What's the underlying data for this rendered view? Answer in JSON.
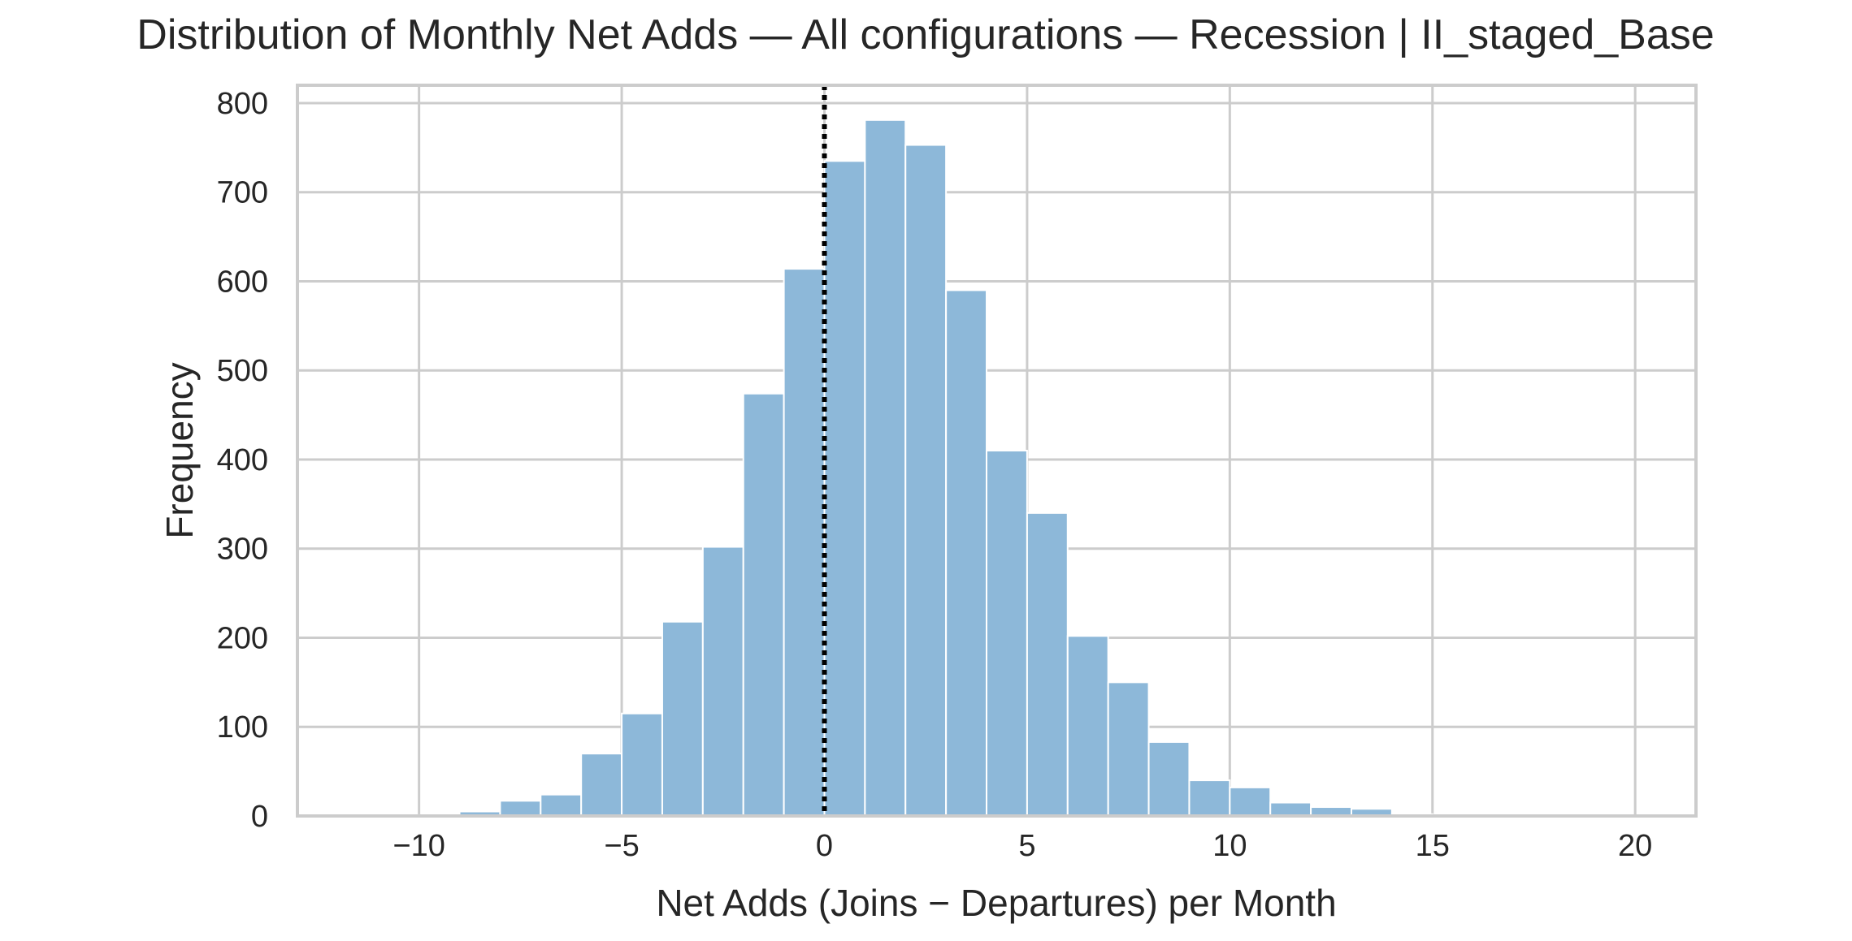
{
  "chart_data": {
    "type": "bar",
    "title": "Distribution of Monthly Net Adds — All configurations — Recession | II_staged_Base",
    "xlabel": "Net Adds (Joins − Departures) per Month",
    "ylabel": "Frequency",
    "xlim": [
      -13,
      21.5
    ],
    "ylim": [
      0,
      820
    ],
    "x_ticks": [
      -10,
      -5,
      0,
      5,
      10,
      15,
      20
    ],
    "x_tick_labels": [
      "−10",
      "−5",
      "0",
      "5",
      "10",
      "15",
      "20"
    ],
    "y_ticks": [
      0,
      100,
      200,
      300,
      400,
      500,
      600,
      700,
      800
    ],
    "y_tick_labels": [
      "0",
      "100",
      "200",
      "300",
      "400",
      "500",
      "600",
      "700",
      "800"
    ],
    "grid": true,
    "bar_color": "#8db8d9",
    "bar_edge_color": "#ffffff",
    "reference_line": {
      "x": 0,
      "style": "dotted",
      "color": "#000000"
    },
    "bin_width": 1,
    "bins": [
      {
        "x0": -12,
        "x1": -11,
        "count": 0
      },
      {
        "x0": -11,
        "x1": -10,
        "count": 0
      },
      {
        "x0": -10,
        "x1": -9,
        "count": 1
      },
      {
        "x0": -9,
        "x1": -8,
        "count": 5
      },
      {
        "x0": -8,
        "x1": -7,
        "count": 17
      },
      {
        "x0": -7,
        "x1": -6,
        "count": 24
      },
      {
        "x0": -6,
        "x1": -5,
        "count": 70
      },
      {
        "x0": -5,
        "x1": -4,
        "count": 115
      },
      {
        "x0": -4,
        "x1": -3,
        "count": 218
      },
      {
        "x0": -3,
        "x1": -2,
        "count": 302
      },
      {
        "x0": -2,
        "x1": -1,
        "count": 474
      },
      {
        "x0": -1,
        "x1": 0,
        "count": 614
      },
      {
        "x0": 0,
        "x1": 1,
        "count": 735
      },
      {
        "x0": 1,
        "x1": 2,
        "count": 781
      },
      {
        "x0": 2,
        "x1": 3,
        "count": 753
      },
      {
        "x0": 3,
        "x1": 4,
        "count": 590
      },
      {
        "x0": 4,
        "x1": 5,
        "count": 410
      },
      {
        "x0": 5,
        "x1": 6,
        "count": 340
      },
      {
        "x0": 6,
        "x1": 7,
        "count": 202
      },
      {
        "x0": 7,
        "x1": 8,
        "count": 150
      },
      {
        "x0": 8,
        "x1": 9,
        "count": 83
      },
      {
        "x0": 9,
        "x1": 10,
        "count": 40
      },
      {
        "x0": 10,
        "x1": 11,
        "count": 32
      },
      {
        "x0": 11,
        "x1": 12,
        "count": 15
      },
      {
        "x0": 12,
        "x1": 13,
        "count": 10
      },
      {
        "x0": 13,
        "x1": 14,
        "count": 8
      },
      {
        "x0": 14,
        "x1": 15,
        "count": 2
      },
      {
        "x0": 15,
        "x1": 16,
        "count": 1
      },
      {
        "x0": 16,
        "x1": 17,
        "count": 0
      },
      {
        "x0": 17,
        "x1": 18,
        "count": 0
      },
      {
        "x0": 18,
        "x1": 19,
        "count": 0
      },
      {
        "x0": 19,
        "x1": 20,
        "count": 0
      }
    ]
  }
}
